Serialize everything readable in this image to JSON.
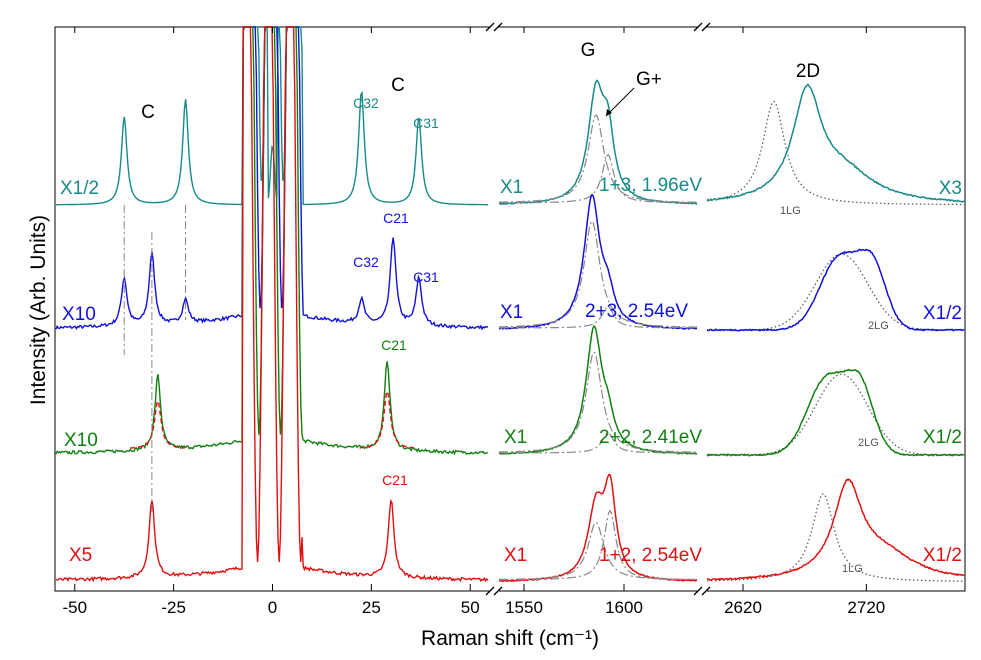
{
  "chart_data": {
    "type": "line",
    "title": "",
    "ylabel": "Intensity (Arb. Units)",
    "xlabel": "Raman shift (cm⁻¹)",
    "colors": {
      "teal": "#178a8a",
      "blue": "#1010e0",
      "green": "#108010",
      "red": "#e01010",
      "gray": "#888888",
      "dotted": "#555555"
    },
    "panels": [
      {
        "name": "low-frequency",
        "xlim": [
          -55,
          55
        ],
        "ticks": [
          -50,
          -25,
          0,
          25,
          50
        ],
        "tick_labels": [
          "-50",
          "-25",
          "0",
          "25",
          "50"
        ],
        "peak_labels": [
          "C",
          "C"
        ]
      },
      {
        "name": "G-band",
        "xlim": [
          1537,
          1637
        ],
        "ticks": [
          1550,
          1600
        ],
        "tick_labels": [
          "1550",
          "1600"
        ],
        "peak_labels": [
          "G",
          "G+"
        ]
      },
      {
        "name": "2D-band",
        "xlim": [
          2590,
          2800
        ],
        "ticks": [
          2620,
          2720
        ],
        "tick_labels": [
          "2620",
          "2720"
        ],
        "peak_labels": [
          "2D"
        ]
      }
    ],
    "series": [
      {
        "name": "1+3, 1.96eV",
        "color": "teal",
        "scales": [
          "X1/2",
          "X1",
          "X3"
        ],
        "low_peaks": [
          {
            "x": -37.5,
            "h": 1.0
          },
          {
            "x": -22,
            "h": 1.2
          },
          {
            "x": 22.5,
            "h": 1.3
          },
          {
            "x": 37,
            "h": 1.0
          }
        ],
        "peak_labels": [
          "C32",
          "C31"
        ],
        "G": {
          "pos": 1586,
          "h": 1.0
        },
        "Gplus": {
          "pos": 1592,
          "h": 0.55
        },
        "twoD": {
          "pos": 2672,
          "h": 1.0,
          "ref_pos": 2645,
          "ref_label": "1LG"
        }
      },
      {
        "name": "2+3, 2.54eV",
        "color": "blue",
        "scales": [
          "X10",
          "X1",
          "X1/2"
        ],
        "low_peaks": [
          {
            "x": -37.5,
            "h": 0.6
          },
          {
            "x": -30.5,
            "h": 0.9
          },
          {
            "x": -22,
            "h": 0.3
          },
          {
            "x": 22.5,
            "h": 0.3
          },
          {
            "x": 30.5,
            "h": 1.1
          },
          {
            "x": 37,
            "h": 0.6
          }
        ],
        "peak_labels": [
          "C32",
          "C21",
          "C31"
        ],
        "G": {
          "pos": 1584,
          "h": 1.0
        },
        "Gplus": {
          "pos": 1592,
          "h": 0.2
        },
        "twoD": {
          "pos": 2710,
          "h": 0.9,
          "ref_pos": 2700,
          "ref_label": "2LG"
        }
      },
      {
        "name": "2+2, 2.41eV",
        "color": "green",
        "scales": [
          "X10",
          "X1",
          "X1/2"
        ],
        "low_peaks": [
          {
            "x": -29,
            "h": 1.0
          },
          {
            "x": 29,
            "h": 1.2
          }
        ],
        "peak_labels": [
          "C21"
        ],
        "G": {
          "pos": 1585,
          "h": 1.0
        },
        "Gplus": {
          "pos": 1592,
          "h": 0.2
        },
        "twoD": {
          "pos": 2700,
          "h": 0.95,
          "ref_pos": 2700,
          "ref_label": "2LG"
        }
      },
      {
        "name": "1+2, 2.54eV",
        "color": "red",
        "scales": [
          "X5",
          "X1",
          "X1/2"
        ],
        "low_peaks": [
          {
            "x": -30.5,
            "h": 1.0
          },
          {
            "x": 30,
            "h": 1.0
          }
        ],
        "peak_labels": [
          "C21"
        ],
        "G": {
          "pos": 1586,
          "h": 0.75
        },
        "Gplus": {
          "pos": 1593,
          "h": 0.9
        },
        "twoD": {
          "pos": 2705,
          "h": 1.0,
          "ref_pos": 2685,
          "ref_label": "1LG"
        }
      }
    ]
  }
}
